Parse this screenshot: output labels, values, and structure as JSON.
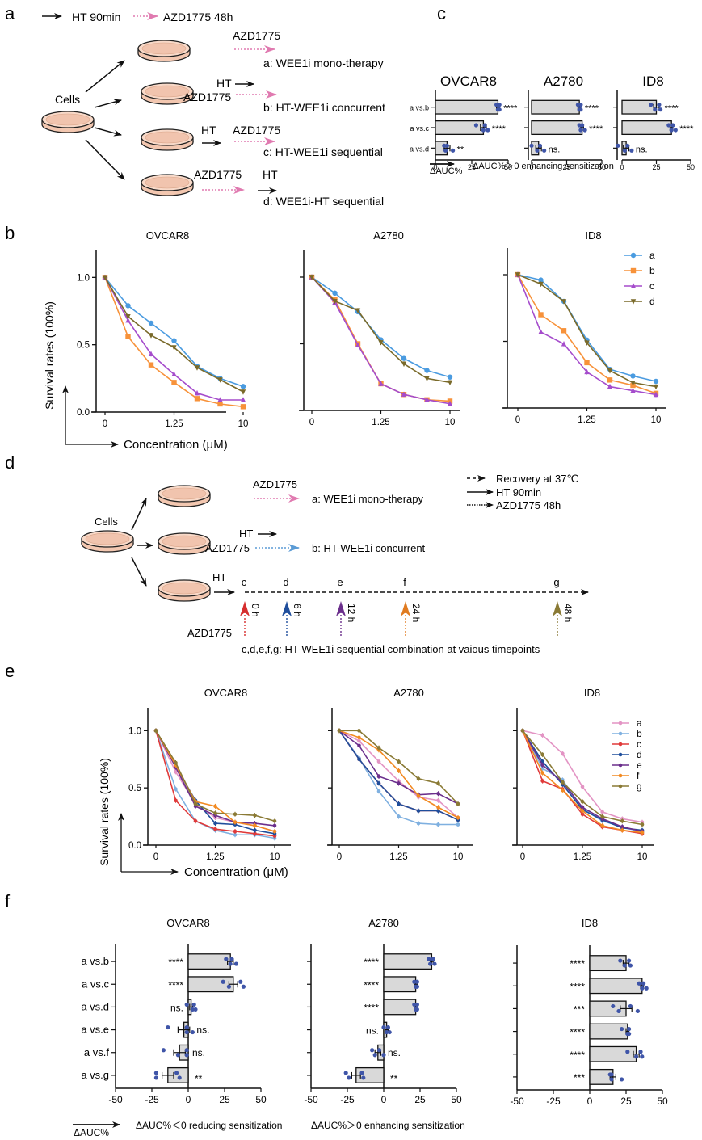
{
  "panel_labels": {
    "a": "a",
    "b": "b",
    "c": "c",
    "d": "d",
    "e": "e",
    "f": "f"
  },
  "panel_a": {
    "legend": {
      "solid_label": "HT 90min",
      "dotted_label": "AZD1775 48h"
    },
    "cells_label": "Cells",
    "groups": [
      {
        "drug": "AZD1775",
        "label": "a: WEE1i mono-therapy"
      },
      {
        "ht": "HT",
        "drug": "AZD1775",
        "label": "b: HT-WEE1i concurrent"
      },
      {
        "ht": "HT",
        "drug": "AZD1775",
        "label": "c: HT-WEE1i sequential"
      },
      {
        "drug": "AZD1775",
        "ht": "HT",
        "label": "d: WEE1i-HT sequential"
      }
    ]
  },
  "panel_d": {
    "legend": {
      "dashed_label": "Recovery at 37℃",
      "solid_label": "HT 90min",
      "dotted_label": "AZD1775 48h"
    },
    "cells_label": "Cells",
    "group_a": {
      "drug": "AZD1775",
      "label": "a: WEE1i mono-therapy"
    },
    "group_b": {
      "ht": "HT",
      "drug": "AZD1775",
      "label": "b: HT-WEE1i concurrent"
    },
    "timeline": {
      "ht": "HT",
      "drug": "AZD1775",
      "points": [
        {
          "letter": "c",
          "time": "0 h",
          "color": "#d62d2d"
        },
        {
          "letter": "d",
          "time": "6 h",
          "color": "#1f4e9c"
        },
        {
          "letter": "e",
          "time": "12 h",
          "color": "#6b2f8c"
        },
        {
          "letter": "f",
          "time": "24 h",
          "color": "#e07b20"
        },
        {
          "letter": "g",
          "time": "48 h",
          "color": "#8a7a35"
        }
      ],
      "caption": "c,d,e,f,g: HT-WEE1i sequential combination at vaious timepoints"
    }
  },
  "colors": {
    "pink_arrow": "#e07ab0",
    "blue_arrow": "#5b9bd5",
    "dish_fill": "#f6d3c0",
    "bar_fill": "#d9d9d9",
    "dot": "#3f55a8"
  },
  "chart_data": [
    {
      "id": "c",
      "type": "bar",
      "orientation": "horizontal",
      "categories": [
        "a vs.b",
        "a vs.c",
        "a vs.d"
      ],
      "xlim": [
        0,
        50
      ],
      "xticks": [
        "0",
        "25",
        "50"
      ],
      "xlabel_arrow": "ΔAUC%",
      "caption": "ΔAUC%＞0 enhancing sensitization",
      "subplots": [
        {
          "title": "OVCAR8",
          "values": [
            43,
            33,
            8
          ],
          "errors": [
            1,
            2,
            2
          ],
          "significance": [
            "****",
            "****",
            "**"
          ],
          "points": [
            [
              42,
              43,
              44,
              44
            ],
            [
              28,
              33,
              34,
              36
            ],
            [
              6,
              7,
              8,
              12
            ]
          ]
        },
        {
          "title": "A2780",
          "values": [
            34,
            36,
            5
          ],
          "errors": [
            1,
            1,
            2
          ],
          "significance": [
            "****",
            "****",
            "ns."
          ],
          "points": [
            [
              33,
              34,
              35,
              35
            ],
            [
              34,
              35,
              36,
              38
            ],
            [
              0,
              4,
              6,
              9
            ]
          ]
        },
        {
          "title": "ID8",
          "values": [
            25,
            36,
            3
          ],
          "errors": [
            2,
            1,
            2
          ],
          "significance": [
            "****",
            "****",
            "ns."
          ],
          "points": [
            [
              21,
              24,
              27,
              28
            ],
            [
              34,
              36,
              37,
              39
            ],
            [
              -3,
              2,
              4,
              7
            ]
          ]
        }
      ]
    },
    {
      "id": "b",
      "type": "line",
      "x": [
        "0",
        "",
        "",
        "1.25",
        "",
        "",
        "10"
      ],
      "xticks": [
        "0",
        "1.25",
        "10"
      ],
      "ylabel": "Survival rates (100%)",
      "xlabel": "Concentration (μM)",
      "ylim": [
        0,
        1.2
      ],
      "yticks": [
        "0.0",
        "0.5",
        "1.0"
      ],
      "legend_position": "top-right",
      "series_style": [
        {
          "name": "a",
          "color": "#4a9be0",
          "marker": "circle"
        },
        {
          "name": "b",
          "color": "#f7923a",
          "marker": "square"
        },
        {
          "name": "c",
          "color": "#a54ccc",
          "marker": "triangle-up"
        },
        {
          "name": "d",
          "color": "#7a6a2a",
          "marker": "triangle-down"
        }
      ],
      "subplots": [
        {
          "title": "OVCAR8",
          "series": [
            [
              1.0,
              0.79,
              0.66,
              0.53,
              0.34,
              0.25,
              0.19
            ],
            [
              1.0,
              0.56,
              0.35,
              0.22,
              0.1,
              0.06,
              0.04
            ],
            [
              1.0,
              0.68,
              0.43,
              0.28,
              0.14,
              0.09,
              0.09
            ],
            [
              1.0,
              0.71,
              0.57,
              0.48,
              0.33,
              0.24,
              0.15
            ]
          ]
        },
        {
          "title": "A2780",
          "series": [
            [
              1.0,
              0.88,
              0.74,
              0.53,
              0.39,
              0.3,
              0.25
            ],
            [
              1.0,
              0.83,
              0.5,
              0.2,
              0.12,
              0.08,
              0.07
            ],
            [
              1.0,
              0.81,
              0.49,
              0.2,
              0.12,
              0.08,
              0.05
            ],
            [
              1.0,
              0.82,
              0.75,
              0.51,
              0.35,
              0.24,
              0.21
            ]
          ]
        },
        {
          "title": "ID8",
          "series": [
            [
              1.0,
              0.96,
              0.8,
              0.51,
              0.29,
              0.24,
              0.2
            ],
            [
              1.0,
              0.7,
              0.58,
              0.34,
              0.21,
              0.17,
              0.11
            ],
            [
              1.0,
              0.57,
              0.48,
              0.27,
              0.16,
              0.13,
              0.1
            ],
            [
              1.0,
              0.93,
              0.8,
              0.49,
              0.28,
              0.19,
              0.16
            ]
          ]
        }
      ]
    },
    {
      "id": "e",
      "type": "line",
      "x": [
        "0",
        "",
        "",
        "1.25",
        "",
        "",
        "10"
      ],
      "xticks": [
        "0",
        "1.25",
        "10"
      ],
      "ylabel": "Survival rates (100%)",
      "xlabel": "Concentration (μM)",
      "ylim": [
        0,
        1.2
      ],
      "yticks": [
        "0.0",
        "0.5",
        "1.0"
      ],
      "legend_position": "top-right",
      "series_style": [
        {
          "name": "a",
          "color": "#e394c4"
        },
        {
          "name": "b",
          "color": "#7fb0e0"
        },
        {
          "name": "c",
          "color": "#e03a3a"
        },
        {
          "name": "d",
          "color": "#1f4e9c"
        },
        {
          "name": "e",
          "color": "#6b2f8c"
        },
        {
          "name": "f",
          "color": "#f28a22"
        },
        {
          "name": "g",
          "color": "#8a7a35"
        }
      ],
      "subplots": [
        {
          "title": "OVCAR8",
          "series": [
            [
              1.0,
              0.64,
              0.36,
              0.24,
              0.2,
              0.17,
              0.12
            ],
            [
              1.0,
              0.49,
              0.21,
              0.13,
              0.09,
              0.09,
              0.06
            ],
            [
              1.0,
              0.39,
              0.21,
              0.14,
              0.12,
              0.1,
              0.08
            ],
            [
              1.0,
              0.69,
              0.39,
              0.19,
              0.18,
              0.13,
              0.1
            ],
            [
              1.0,
              0.68,
              0.34,
              0.26,
              0.2,
              0.19,
              0.17
            ],
            [
              1.0,
              0.7,
              0.38,
              0.34,
              0.2,
              0.17,
              0.12
            ],
            [
              1.0,
              0.72,
              0.36,
              0.28,
              0.27,
              0.26,
              0.21
            ]
          ]
        },
        {
          "title": "A2780",
          "series": [
            [
              1.0,
              0.91,
              0.73,
              0.56,
              0.42,
              0.39,
              0.24
            ],
            [
              1.0,
              0.76,
              0.47,
              0.25,
              0.19,
              0.18,
              0.18
            ],
            [
              1.0,
              0.75,
              0.54,
              0.36,
              0.3,
              0.3,
              0.22
            ],
            [
              1.0,
              0.75,
              0.54,
              0.36,
              0.3,
              0.3,
              0.22
            ],
            [
              1.0,
              0.87,
              0.6,
              0.54,
              0.44,
              0.45,
              0.36
            ],
            [
              1.0,
              0.94,
              0.83,
              0.65,
              0.43,
              0.33,
              0.24
            ],
            [
              1.0,
              1.0,
              0.85,
              0.73,
              0.58,
              0.54,
              0.36
            ]
          ]
        },
        {
          "title": "ID8",
          "series": [
            [
              1.0,
              0.96,
              0.8,
              0.51,
              0.29,
              0.23,
              0.2
            ],
            [
              1.0,
              0.67,
              0.57,
              0.32,
              0.21,
              0.16,
              0.11
            ],
            [
              1.0,
              0.56,
              0.49,
              0.27,
              0.16,
              0.13,
              0.1
            ],
            [
              1.0,
              0.73,
              0.53,
              0.31,
              0.22,
              0.15,
              0.13
            ],
            [
              1.0,
              0.7,
              0.55,
              0.33,
              0.23,
              0.16,
              0.12
            ],
            [
              1.0,
              0.63,
              0.48,
              0.3,
              0.17,
              0.13,
              0.11
            ],
            [
              1.0,
              0.79,
              0.55,
              0.38,
              0.25,
              0.21,
              0.18
            ]
          ]
        }
      ]
    },
    {
      "id": "f",
      "type": "bar",
      "orientation": "horizontal",
      "categories": [
        "a vs.b",
        "a vs.c",
        "a vs.d",
        "a vs.e",
        "a vs.f",
        "a vs.g"
      ],
      "xlim": [
        -50,
        50
      ],
      "xticks": [
        "-50",
        "-25",
        "0",
        "25",
        "50"
      ],
      "xlabel_arrow": "ΔAUC%",
      "caption_left": "ΔAUC%＜0 reducing   sensitization",
      "caption_right": "ΔAUC%＞0 enhancing sensitization",
      "subplots": [
        {
          "title": "OVCAR8",
          "values": [
            29,
            31,
            2,
            -3,
            -6,
            -14
          ],
          "errors": [
            2,
            3,
            1,
            4,
            4,
            4
          ],
          "significance": [
            "****",
            "****",
            "ns.",
            "ns.",
            "ns.",
            "**"
          ],
          "points": [
            [
              26,
              29,
              30,
              33
            ],
            [
              24,
              28,
              36,
              38
            ],
            [
              -1,
              3,
              4,
              5
            ],
            [
              -14,
              -1,
              -1,
              3
            ],
            [
              -17,
              -7,
              -1,
              -1
            ],
            [
              -22,
              -22,
              -8,
              -6
            ]
          ]
        },
        {
          "title": "A2780",
          "values": [
            33,
            22,
            22,
            2,
            -4,
            -19
          ],
          "errors": [
            1,
            1,
            1,
            1,
            2,
            3
          ],
          "significance": [
            "****",
            "****",
            "****",
            "ns.",
            "ns.",
            "**"
          ],
          "points": [
            [
              31,
              32,
              34,
              35
            ],
            [
              21,
              22,
              23,
              23
            ],
            [
              21,
              22,
              23,
              23
            ],
            [
              0,
              2,
              3,
              4
            ],
            [
              -8,
              -6,
              -3,
              0
            ],
            [
              -26,
              -24,
              -15,
              -14
            ]
          ]
        },
        {
          "title": "ID8",
          "values": [
            25,
            36,
            25,
            26,
            32,
            16
          ],
          "errors": [
            2,
            1,
            4,
            1,
            2,
            2
          ],
          "significance": [
            "****",
            "****",
            "***",
            "****",
            "****",
            "***"
          ],
          "points": [
            [
              21,
              24,
              27,
              28
            ],
            [
              34,
              36,
              37,
              39
            ],
            [
              16,
              20,
              28,
              33
            ],
            [
              22,
              26,
              27,
              27
            ],
            [
              26,
              32,
              35,
              36
            ],
            [
              14,
              15,
              15,
              22
            ]
          ]
        }
      ]
    }
  ]
}
